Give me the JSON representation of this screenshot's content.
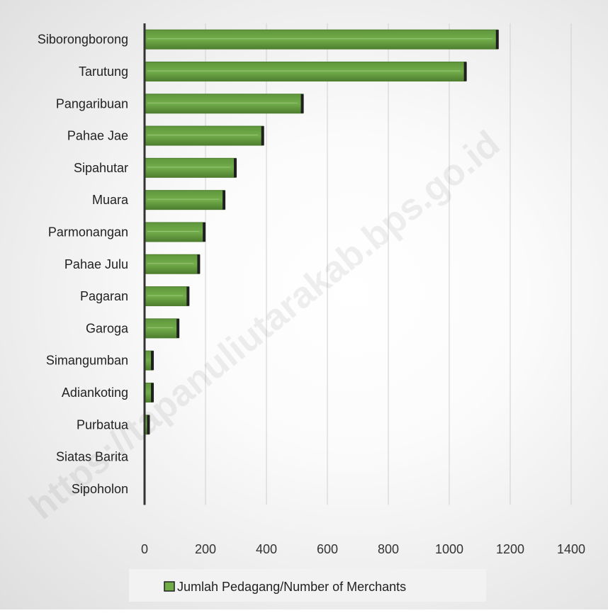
{
  "watermark": "https://tapanuliutarakab.bps.go.id",
  "colors": {
    "bar": "#70AD47",
    "bar_dark": "#4E7E2F",
    "bar_edge": "#1F1F1F",
    "grid": "#D0D0D0",
    "axis": "#333333"
  },
  "chart_data": {
    "type": "bar",
    "orientation": "horizontal",
    "categories": [
      "Siborongborong",
      "Tarutung",
      "Pangaribuan",
      "Pahae Jae",
      "Sipahutar",
      "Muara",
      "Parmonangan",
      "Pahae Julu",
      "Pagaran",
      "Garoga",
      "Simangumban",
      "Adiankoting",
      "Purbatua",
      "Siatas Barita",
      "Sipoholon"
    ],
    "series": [
      {
        "name": "Jumlah Pedagang/Number of Merchants",
        "values": [
          1160,
          1055,
          520,
          390,
          300,
          263,
          198,
          180,
          145,
          112,
          28,
          28,
          15,
          0,
          0
        ]
      }
    ],
    "xlim": [
      0,
      1400
    ],
    "xticks": [
      0,
      200,
      400,
      600,
      800,
      1000,
      1200,
      1400
    ],
    "grid": true,
    "legend_position": "bottom"
  }
}
